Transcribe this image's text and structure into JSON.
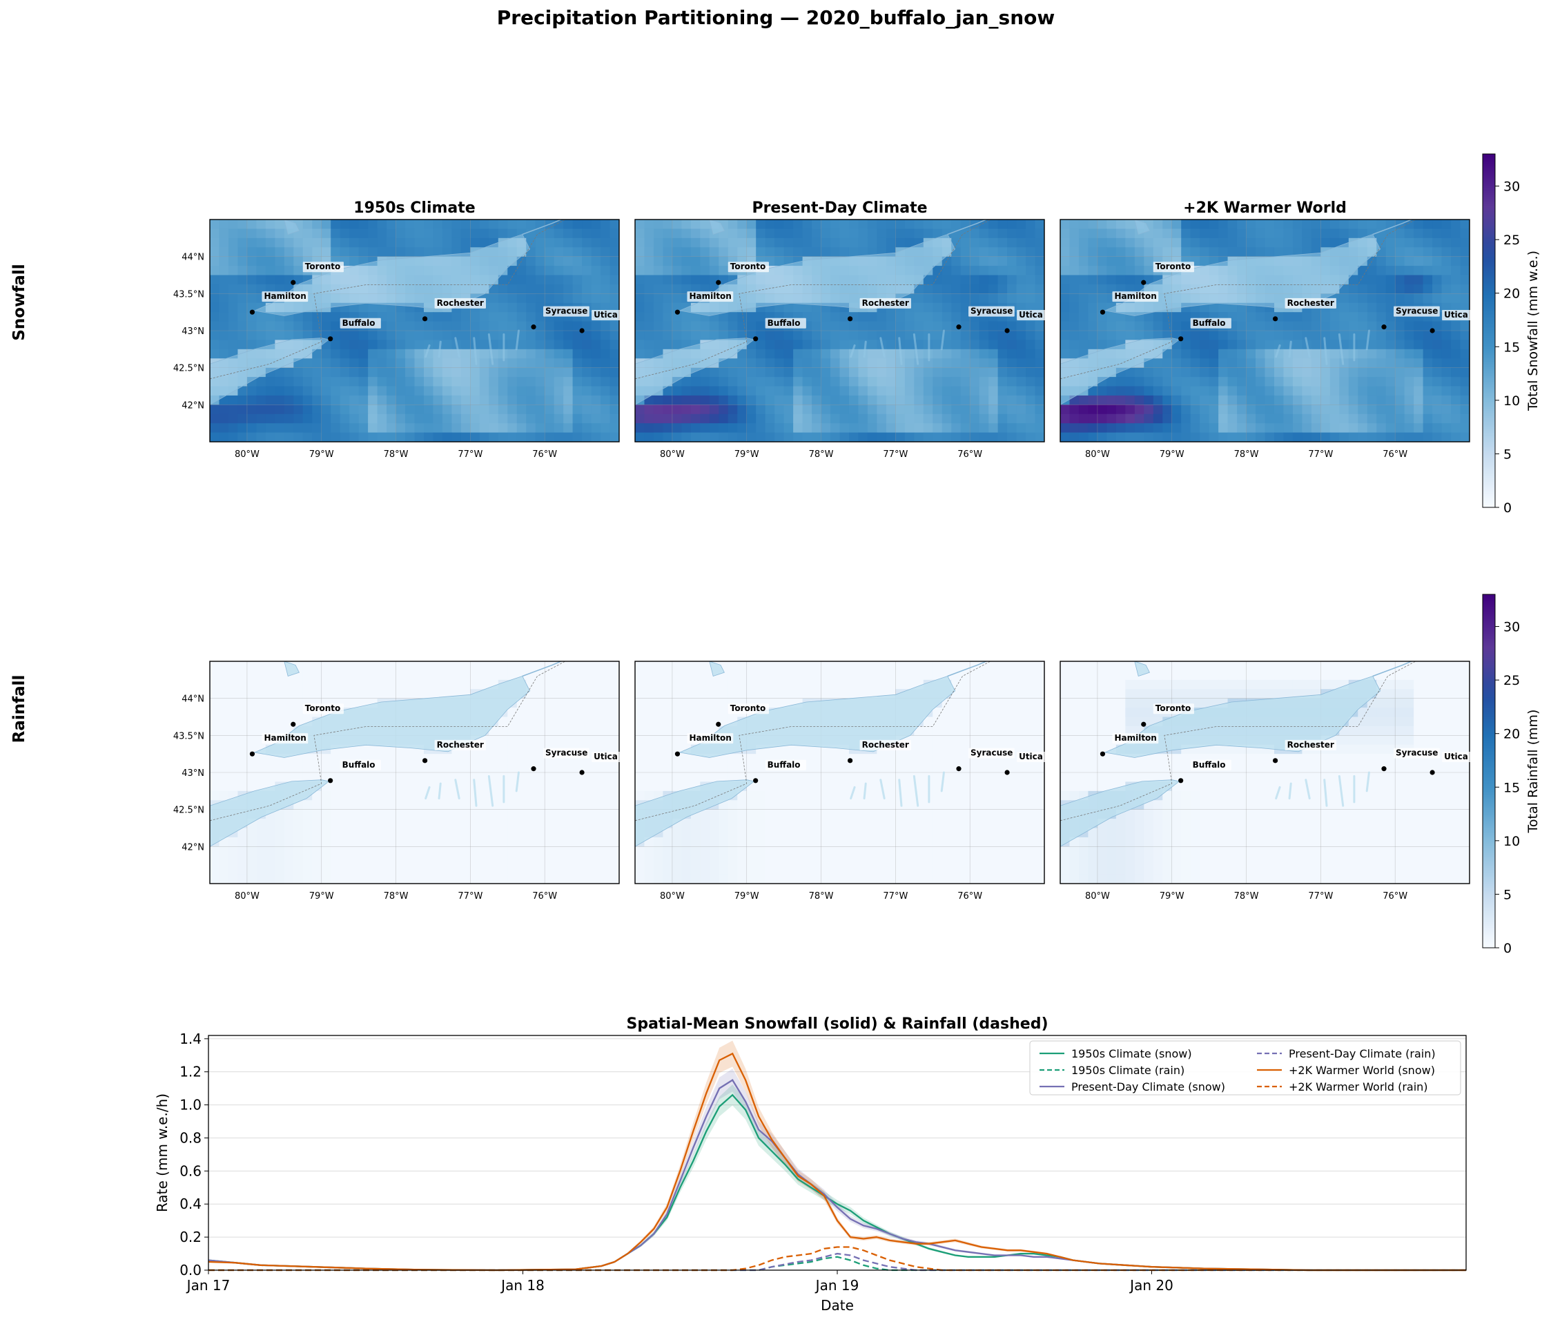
{
  "figure": {
    "suptitle": "Precipitation Partitioning — 2020_buffalo_jan_snow",
    "row_labels": [
      "Snowfall",
      "Rainfall"
    ],
    "panel_titles": [
      "1950s Climate",
      "Present-Day Climate",
      "+2K Warmer World"
    ]
  },
  "maps": {
    "lat_ticks": [
      "44°N",
      "43.5°N",
      "43°N",
      "42.5°N",
      "42°N"
    ],
    "lon_ticks": [
      "80°W",
      "79°W",
      "78°W",
      "77°W",
      "76°W"
    ],
    "extent": {
      "lon": [
        -80.5,
        -75.0
      ],
      "lat": [
        41.5,
        44.5
      ]
    },
    "cities": [
      {
        "name": "Toronto",
        "lon": -79.38,
        "lat": 43.65
      },
      {
        "name": "Hamilton",
        "lon": -79.93,
        "lat": 43.25
      },
      {
        "name": "Buffalo",
        "lon": -78.88,
        "lat": 42.89
      },
      {
        "name": "Rochester",
        "lon": -77.61,
        "lat": 43.16
      },
      {
        "name": "Syracuse",
        "lon": -76.15,
        "lat": 43.05
      },
      {
        "name": "Utica",
        "lon": -75.5,
        "lat": 43.0
      }
    ],
    "snow_colorbar": {
      "label": "Total Snowfall (mm w.e.)",
      "ticks": [
        0,
        5,
        10,
        15,
        20,
        25,
        30
      ],
      "max": 33,
      "colormap": "blue-purple"
    },
    "rain_colorbar": {
      "label": "Total Rainfall (mm)",
      "ticks": [
        0,
        5,
        10,
        15,
        20,
        25,
        30
      ],
      "max": 33,
      "colormap": "blue-purple"
    }
  },
  "chart_data": {
    "type": "line",
    "title": "Spatial-Mean Snowfall (solid) & Rainfall (dashed)",
    "xlabel": "Date",
    "ylabel": "Rate (mm w.e./h)",
    "xlim": [
      0,
      96
    ],
    "ylim": [
      0,
      1.42
    ],
    "xticks": [
      {
        "x": 0,
        "label": "Jan 17"
      },
      {
        "x": 24,
        "label": "Jan 18"
      },
      {
        "x": 48,
        "label": "Jan 19"
      },
      {
        "x": 72,
        "label": "Jan 20"
      }
    ],
    "yticks": [
      "0.0",
      "0.2",
      "0.4",
      "0.6",
      "0.8",
      "1.0",
      "1.2",
      "1.4"
    ],
    "grid": "horizontal",
    "legend_position": "top-right",
    "series": [
      {
        "name": "1950s Climate (snow)",
        "color": "#1b9e77",
        "dash": false,
        "points": [
          [
            0,
            0.06
          ],
          [
            2,
            0.045
          ],
          [
            4,
            0.03
          ],
          [
            8,
            0.02
          ],
          [
            12,
            0.01
          ],
          [
            16,
            0.003
          ],
          [
            22,
            0.0
          ],
          [
            28,
            0.005
          ],
          [
            30,
            0.025
          ],
          [
            31,
            0.05
          ],
          [
            32,
            0.1
          ],
          [
            33,
            0.15
          ],
          [
            34,
            0.22
          ],
          [
            35,
            0.32
          ],
          [
            36,
            0.5
          ],
          [
            37,
            0.66
          ],
          [
            38,
            0.84
          ],
          [
            39,
            0.99
          ],
          [
            40,
            1.06
          ],
          [
            41,
            0.97
          ],
          [
            42,
            0.8
          ],
          [
            43,
            0.72
          ],
          [
            44,
            0.64
          ],
          [
            45,
            0.55
          ],
          [
            46,
            0.5
          ],
          [
            47,
            0.45
          ],
          [
            48,
            0.4
          ],
          [
            49,
            0.36
          ],
          [
            50,
            0.3
          ],
          [
            51,
            0.26
          ],
          [
            52,
            0.22
          ],
          [
            53,
            0.19
          ],
          [
            54,
            0.16
          ],
          [
            55,
            0.13
          ],
          [
            56,
            0.11
          ],
          [
            57,
            0.09
          ],
          [
            58,
            0.08
          ],
          [
            59,
            0.08
          ],
          [
            60,
            0.08
          ],
          [
            61,
            0.09
          ],
          [
            62,
            0.1
          ],
          [
            63,
            0.1
          ],
          [
            64,
            0.09
          ],
          [
            65,
            0.08
          ],
          [
            66,
            0.06
          ],
          [
            68,
            0.04
          ],
          [
            70,
            0.03
          ],
          [
            72,
            0.02
          ],
          [
            76,
            0.01
          ],
          [
            80,
            0.005
          ],
          [
            84,
            0.0
          ],
          [
            96,
            0.0
          ]
        ]
      },
      {
        "name": "1950s Climate (rain)",
        "color": "#1b9e77",
        "dash": true,
        "points": [
          [
            0,
            0
          ],
          [
            42,
            0
          ],
          [
            43,
            0.02
          ],
          [
            45,
            0.04
          ],
          [
            46,
            0.05
          ],
          [
            47,
            0.07
          ],
          [
            48,
            0.08
          ],
          [
            49,
            0.06
          ],
          [
            50,
            0.03
          ],
          [
            51,
            0.01
          ],
          [
            52,
            0
          ],
          [
            96,
            0
          ]
        ]
      },
      {
        "name": "Present-Day Climate (snow)",
        "color": "#7570b3",
        "dash": false,
        "points": [
          [
            0,
            0.06
          ],
          [
            2,
            0.045
          ],
          [
            4,
            0.03
          ],
          [
            8,
            0.02
          ],
          [
            12,
            0.01
          ],
          [
            16,
            0.003
          ],
          [
            22,
            0.0
          ],
          [
            28,
            0.005
          ],
          [
            30,
            0.025
          ],
          [
            31,
            0.05
          ],
          [
            32,
            0.1
          ],
          [
            33,
            0.15
          ],
          [
            34,
            0.22
          ],
          [
            35,
            0.34
          ],
          [
            36,
            0.54
          ],
          [
            37,
            0.74
          ],
          [
            38,
            0.93
          ],
          [
            39,
            1.1
          ],
          [
            40,
            1.15
          ],
          [
            41,
            1.02
          ],
          [
            42,
            0.85
          ],
          [
            43,
            0.78
          ],
          [
            44,
            0.68
          ],
          [
            45,
            0.58
          ],
          [
            46,
            0.52
          ],
          [
            47,
            0.46
          ],
          [
            48,
            0.38
          ],
          [
            49,
            0.31
          ],
          [
            50,
            0.27
          ],
          [
            51,
            0.25
          ],
          [
            52,
            0.22
          ],
          [
            53,
            0.19
          ],
          [
            54,
            0.17
          ],
          [
            55,
            0.16
          ],
          [
            56,
            0.14
          ],
          [
            57,
            0.12
          ],
          [
            58,
            0.11
          ],
          [
            59,
            0.1
          ],
          [
            60,
            0.09
          ],
          [
            61,
            0.09
          ],
          [
            62,
            0.09
          ],
          [
            63,
            0.08
          ],
          [
            64,
            0.08
          ],
          [
            65,
            0.07
          ],
          [
            66,
            0.06
          ],
          [
            68,
            0.04
          ],
          [
            70,
            0.03
          ],
          [
            72,
            0.02
          ],
          [
            76,
            0.01
          ],
          [
            80,
            0.005
          ],
          [
            84,
            0.0
          ],
          [
            96,
            0.0
          ]
        ]
      },
      {
        "name": "Present-Day Climate (rain)",
        "color": "#7570b3",
        "dash": true,
        "points": [
          [
            0,
            0
          ],
          [
            42,
            0
          ],
          [
            43,
            0.02
          ],
          [
            45,
            0.05
          ],
          [
            46,
            0.06
          ],
          [
            47,
            0.08
          ],
          [
            48,
            0.1
          ],
          [
            49,
            0.09
          ],
          [
            50,
            0.06
          ],
          [
            51,
            0.04
          ],
          [
            52,
            0.02
          ],
          [
            53,
            0.01
          ],
          [
            54,
            0
          ],
          [
            96,
            0
          ]
        ]
      },
      {
        "name": "+2K Warmer World (snow)",
        "color": "#d95f02",
        "dash": false,
        "points": [
          [
            0,
            0.05
          ],
          [
            2,
            0.045
          ],
          [
            4,
            0.03
          ],
          [
            8,
            0.02
          ],
          [
            12,
            0.01
          ],
          [
            16,
            0.003
          ],
          [
            22,
            0.0
          ],
          [
            28,
            0.005
          ],
          [
            30,
            0.025
          ],
          [
            31,
            0.05
          ],
          [
            32,
            0.1
          ],
          [
            33,
            0.17
          ],
          [
            34,
            0.25
          ],
          [
            35,
            0.38
          ],
          [
            36,
            0.6
          ],
          [
            37,
            0.84
          ],
          [
            38,
            1.07
          ],
          [
            39,
            1.27
          ],
          [
            40,
            1.31
          ],
          [
            41,
            1.15
          ],
          [
            42,
            0.93
          ],
          [
            43,
            0.79
          ],
          [
            44,
            0.68
          ],
          [
            45,
            0.57
          ],
          [
            46,
            0.52
          ],
          [
            47,
            0.45
          ],
          [
            48,
            0.3
          ],
          [
            49,
            0.2
          ],
          [
            50,
            0.19
          ],
          [
            51,
            0.2
          ],
          [
            52,
            0.18
          ],
          [
            53,
            0.17
          ],
          [
            54,
            0.16
          ],
          [
            55,
            0.16
          ],
          [
            56,
            0.17
          ],
          [
            57,
            0.18
          ],
          [
            58,
            0.16
          ],
          [
            59,
            0.14
          ],
          [
            60,
            0.13
          ],
          [
            61,
            0.12
          ],
          [
            62,
            0.12
          ],
          [
            63,
            0.11
          ],
          [
            64,
            0.1
          ],
          [
            65,
            0.08
          ],
          [
            66,
            0.06
          ],
          [
            68,
            0.04
          ],
          [
            70,
            0.03
          ],
          [
            72,
            0.02
          ],
          [
            76,
            0.01
          ],
          [
            80,
            0.005
          ],
          [
            84,
            0.0
          ],
          [
            96,
            0.0
          ]
        ]
      },
      {
        "name": "+2K Warmer World (rain)",
        "color": "#d95f02",
        "dash": true,
        "points": [
          [
            0,
            0
          ],
          [
            40,
            0
          ],
          [
            41,
            0.01
          ],
          [
            42,
            0.03
          ],
          [
            43,
            0.06
          ],
          [
            44,
            0.08
          ],
          [
            45,
            0.09
          ],
          [
            46,
            0.1
          ],
          [
            47,
            0.13
          ],
          [
            48,
            0.14
          ],
          [
            49,
            0.14
          ],
          [
            50,
            0.12
          ],
          [
            51,
            0.09
          ],
          [
            52,
            0.06
          ],
          [
            53,
            0.04
          ],
          [
            54,
            0.02
          ],
          [
            55,
            0.01
          ],
          [
            56,
            0
          ],
          [
            96,
            0
          ]
        ]
      }
    ]
  }
}
